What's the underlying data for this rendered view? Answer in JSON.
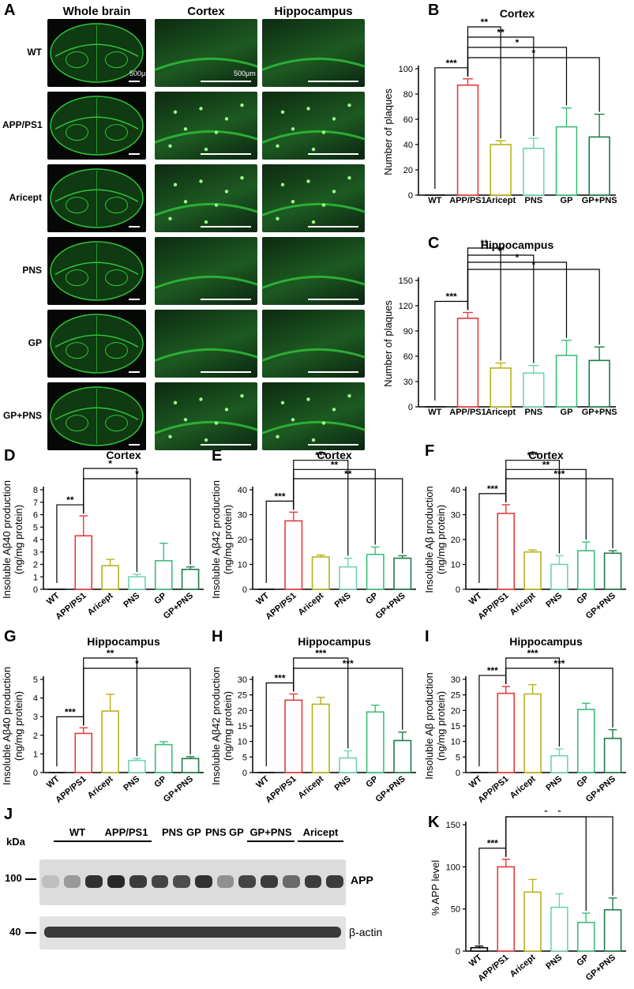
{
  "panel_letters": [
    "A",
    "B",
    "C",
    "D",
    "E",
    "F",
    "G",
    "H",
    "I",
    "J",
    "K"
  ],
  "micro": {
    "columns": [
      "Whole brain",
      "Cortex",
      "Hippocampus"
    ],
    "rows": [
      "WT",
      "APP/PS1",
      "Aricept",
      "PNS",
      "GP",
      "GP+PNS"
    ],
    "scale_labels": [
      "500μm",
      "500μm"
    ]
  },
  "colors": {
    "WT": "#000000",
    "APP/PS1": "#e8393a",
    "Aricept": "#b8b21c",
    "PNS": "#6fd3b4",
    "GP": "#3bbf7a",
    "GP+PNS": "#1f7a4a",
    "fluor": "#2fc43a"
  },
  "western": {
    "kda_label": "kDa",
    "groups": [
      "WT",
      "APP/PS1",
      "PNS",
      "GP",
      "PNS",
      "GP",
      "GP+PNS",
      "Aricept"
    ],
    "markers": [
      "100",
      "40"
    ],
    "band_labels": [
      "APP",
      "β-actin"
    ]
  },
  "chart_data": [
    {
      "panel": "B",
      "type": "bar",
      "title": "Cortex",
      "ylabel": "Number of plaques",
      "ylim": [
        0,
        100
      ],
      "yticks": [
        0,
        20,
        40,
        60,
        80,
        100
      ],
      "categories": [
        "WT",
        "APP/PS1",
        "Aricept",
        "PNS",
        "GP",
        "GP+PNS"
      ],
      "values": [
        0,
        87,
        40,
        37,
        54,
        46
      ],
      "errors": [
        0,
        5,
        3,
        8,
        15,
        18
      ],
      "sig": [
        {
          "to": 2,
          "label": "**"
        },
        {
          "to": 3,
          "label": "**"
        },
        {
          "to": 4,
          "label": "*"
        },
        {
          "to": 5,
          "label": "*"
        },
        {
          "from": 0,
          "to": 1,
          "label": "***"
        }
      ]
    },
    {
      "panel": "C",
      "type": "bar",
      "title": "Hippocampus",
      "ylabel": "Number of plaques",
      "ylim": [
        0,
        150
      ],
      "yticks": [
        0,
        30,
        60,
        90,
        120,
        150
      ],
      "categories": [
        "WT",
        "APP/PS1",
        "Aricept",
        "PNS",
        "GP",
        "GP+PNS"
      ],
      "values": [
        0,
        105,
        46,
        40,
        61,
        55
      ],
      "errors": [
        0,
        7,
        6,
        9,
        18,
        16
      ],
      "sig": [
        {
          "to": 2,
          "label": "**"
        },
        {
          "to": 3,
          "label": "**"
        },
        {
          "to": 4,
          "label": "*"
        },
        {
          "to": 5,
          "label": "*"
        },
        {
          "from": 0,
          "to": 1,
          "label": "***"
        }
      ]
    },
    {
      "panel": "D",
      "type": "bar",
      "title": "Cortex",
      "ylabel": "Insoluble Aβ40 production (ng/mg protein)",
      "ylim": [
        0,
        8
      ],
      "yticks": [
        0,
        1,
        2,
        3,
        4,
        5,
        6,
        7,
        8
      ],
      "categories": [
        "WT",
        "APP/PS1",
        "Aricept",
        "PNS",
        "GP",
        "GP+PNS"
      ],
      "values": [
        0,
        4.3,
        1.9,
        1.0,
        2.3,
        1.6
      ],
      "errors": [
        0,
        1.6,
        0.5,
        0.2,
        1.4,
        0.2
      ],
      "sig": [
        {
          "to": 3,
          "label": "*"
        },
        {
          "to": 5,
          "label": "*"
        },
        {
          "from": 0,
          "to": 1,
          "label": "**"
        }
      ]
    },
    {
      "panel": "E",
      "type": "bar",
      "title": "Cortex",
      "ylabel": "Insoluble Aβ42 production (ng/mg protein)",
      "ylim": [
        0,
        40
      ],
      "yticks": [
        0,
        10,
        20,
        30,
        40
      ],
      "categories": [
        "WT",
        "APP/PS1",
        "Aricept",
        "PNS",
        "GP",
        "GP+PNS"
      ],
      "values": [
        0,
        27.5,
        13,
        9,
        14,
        12.5
      ],
      "errors": [
        0,
        3.5,
        0.8,
        3.5,
        3,
        1
      ],
      "sig": [
        {
          "to": 3,
          "label": "***"
        },
        {
          "to": 4,
          "label": "**"
        },
        {
          "to": 5,
          "label": "**"
        },
        {
          "from": 0,
          "to": 1,
          "label": "***"
        }
      ]
    },
    {
      "panel": "F",
      "type": "bar",
      "title": "Cortex",
      "ylabel": "Insoluble Aβ production (ng/mg protein)",
      "ylim": [
        0,
        40
      ],
      "yticks": [
        0,
        10,
        20,
        30,
        40
      ],
      "categories": [
        "WT",
        "APP/PS1",
        "Aricept",
        "PNS",
        "GP",
        "GP+PNS"
      ],
      "values": [
        0,
        30.5,
        15,
        10,
        15.5,
        14.5
      ],
      "errors": [
        0,
        3.5,
        0.8,
        3.5,
        3.5,
        1
      ],
      "sig": [
        {
          "to": 3,
          "label": "***"
        },
        {
          "to": 4,
          "label": "**"
        },
        {
          "to": 5,
          "label": "***"
        },
        {
          "from": 0,
          "to": 1,
          "label": "***"
        }
      ]
    },
    {
      "panel": "G",
      "type": "bar",
      "title": "Hippocampus",
      "ylabel": "Insoluble Aβ40 production (ng/mg protein)",
      "ylim": [
        0,
        5
      ],
      "yticks": [
        0,
        1,
        2,
        3,
        4,
        5
      ],
      "categories": [
        "WT",
        "APP/PS1",
        "Aricept",
        "PNS",
        "GP",
        "GP+PNS"
      ],
      "values": [
        0,
        2.1,
        3.3,
        0.65,
        1.5,
        0.75
      ],
      "errors": [
        0,
        0.3,
        0.9,
        0.1,
        0.15,
        0.1
      ],
      "sig": [
        {
          "to": 3,
          "label": "**"
        },
        {
          "to": 5,
          "label": "*"
        },
        {
          "from": 0,
          "to": 1,
          "label": "***"
        }
      ]
    },
    {
      "panel": "H",
      "type": "bar",
      "title": "Hippocampus",
      "ylabel": "Insoluble Aβ42 production (ng/mg protein)",
      "ylim": [
        0,
        30
      ],
      "yticks": [
        0,
        5,
        10,
        15,
        20,
        25,
        30
      ],
      "categories": [
        "WT",
        "APP/PS1",
        "Aricept",
        "PNS",
        "GP",
        "GP+PNS"
      ],
      "values": [
        0,
        23.3,
        22,
        4.7,
        19.5,
        10.3
      ],
      "errors": [
        0,
        2,
        2.2,
        2.3,
        2.2,
        2.7
      ],
      "sig": [
        {
          "to": 3,
          "label": "***"
        },
        {
          "to": 5,
          "label": "***"
        },
        {
          "from": 0,
          "to": 1,
          "label": "***"
        }
      ]
    },
    {
      "panel": "I",
      "type": "bar",
      "title": "Hippocampus",
      "ylabel": "Insoluble Aβ production (ng/mg protein)",
      "ylim": [
        0,
        30
      ],
      "yticks": [
        0,
        5,
        10,
        15,
        20,
        25,
        30
      ],
      "categories": [
        "WT",
        "APP/PS1",
        "Aricept",
        "PNS",
        "GP",
        "GP+PNS"
      ],
      "values": [
        0,
        25.5,
        25.3,
        5.4,
        20.3,
        11
      ],
      "errors": [
        0,
        2.2,
        3,
        2.2,
        2,
        2.8
      ],
      "sig": [
        {
          "to": 3,
          "label": "***"
        },
        {
          "to": 5,
          "label": "***"
        },
        {
          "from": 0,
          "to": 1,
          "label": "***"
        }
      ]
    },
    {
      "panel": "K",
      "type": "bar",
      "title": "",
      "ylabel": "% APP level",
      "ylim": [
        0,
        150
      ],
      "yticks": [
        0,
        50,
        100,
        150
      ],
      "categories": [
        "WT",
        "APP/PS1",
        "Aricept",
        "PNS",
        "GP",
        "GP+PNS"
      ],
      "values": [
        4,
        100,
        70,
        52,
        34,
        49
      ],
      "errors": [
        2,
        9,
        15,
        16,
        11,
        14
      ],
      "sig": [
        {
          "to": 4,
          "label": "*"
        },
        {
          "to": 5,
          "label": "*"
        },
        {
          "from": 0,
          "to": 1,
          "label": "***"
        }
      ]
    }
  ]
}
